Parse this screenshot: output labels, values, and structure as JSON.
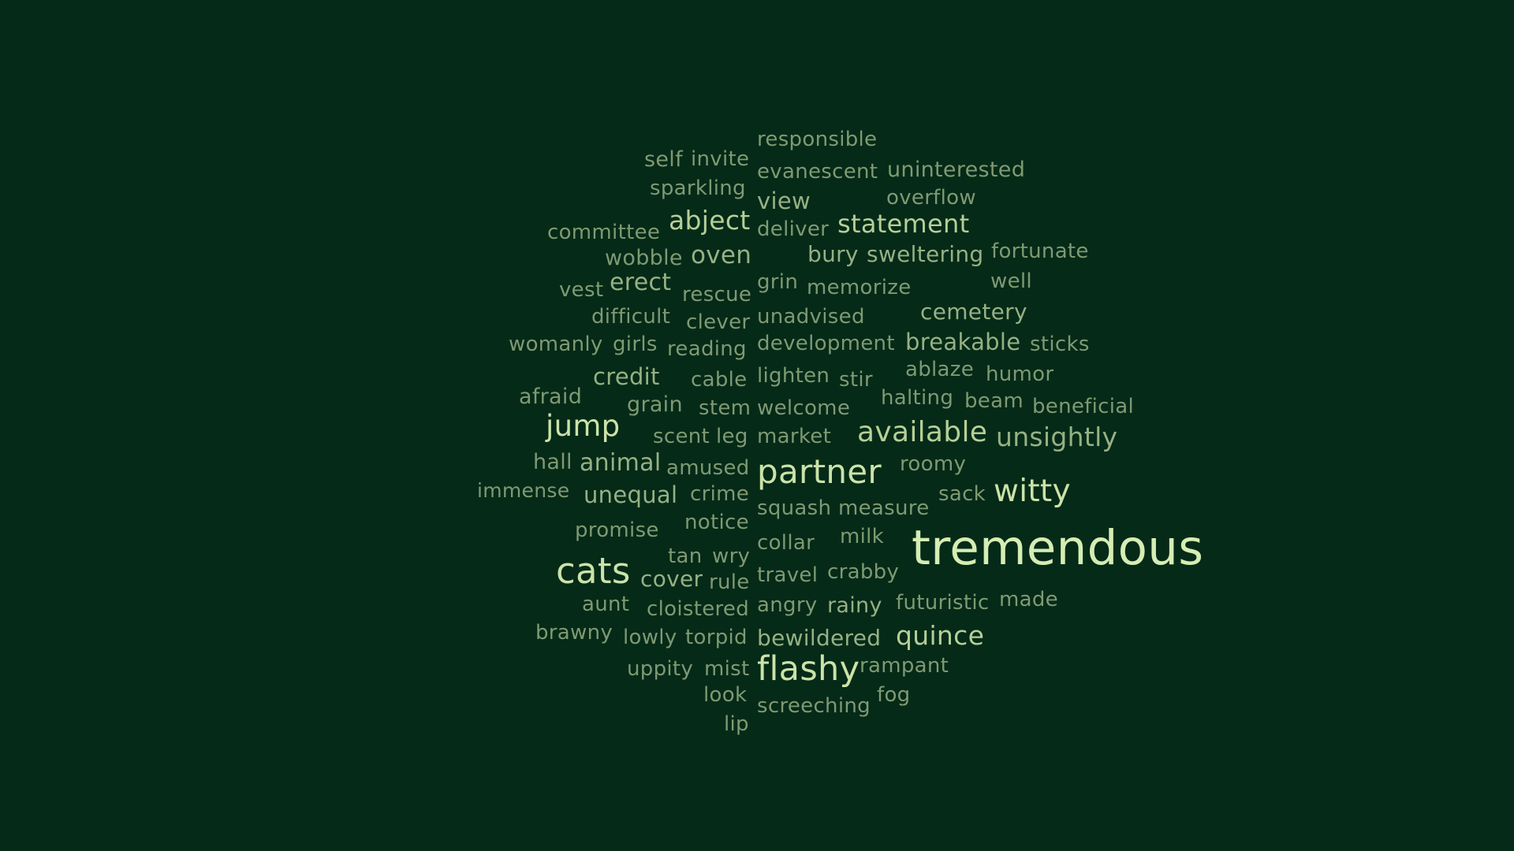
{
  "theme": {
    "background": "#052a18",
    "word_colors": [
      "#7f9a72",
      "#96b183",
      "#b6cf97",
      "#cbe3a8",
      "#d6edb3"
    ]
  },
  "words": [
    {
      "text": "responsible",
      "weight": 1
    },
    {
      "text": "self",
      "weight": 1
    },
    {
      "text": "invite",
      "weight": 1
    },
    {
      "text": "evanescent",
      "weight": 1
    },
    {
      "text": "uninterested",
      "weight": 1
    },
    {
      "text": "sparkling",
      "weight": 1
    },
    {
      "text": "view",
      "weight": 2
    },
    {
      "text": "overflow",
      "weight": 1
    },
    {
      "text": "committee",
      "weight": 1
    },
    {
      "text": "abject",
      "weight": 3
    },
    {
      "text": "deliver",
      "weight": 1
    },
    {
      "text": "statement",
      "weight": 3
    },
    {
      "text": "wobble",
      "weight": 1
    },
    {
      "text": "oven",
      "weight": 2
    },
    {
      "text": "bury",
      "weight": 2
    },
    {
      "text": "sweltering",
      "weight": 2
    },
    {
      "text": "fortunate",
      "weight": 1
    },
    {
      "text": "vest",
      "weight": 1
    },
    {
      "text": "erect",
      "weight": 2
    },
    {
      "text": "rescue",
      "weight": 1
    },
    {
      "text": "grin",
      "weight": 1
    },
    {
      "text": "memorize",
      "weight": 1
    },
    {
      "text": "well",
      "weight": 1
    },
    {
      "text": "difficult",
      "weight": 1
    },
    {
      "text": "clever",
      "weight": 1
    },
    {
      "text": "unadvised",
      "weight": 1
    },
    {
      "text": "cemetery",
      "weight": 2
    },
    {
      "text": "womanly",
      "weight": 1
    },
    {
      "text": "girls",
      "weight": 1
    },
    {
      "text": "reading",
      "weight": 1
    },
    {
      "text": "development",
      "weight": 1
    },
    {
      "text": "breakable",
      "weight": 2
    },
    {
      "text": "sticks",
      "weight": 1
    },
    {
      "text": "credit",
      "weight": 2
    },
    {
      "text": "cable",
      "weight": 1
    },
    {
      "text": "lighten",
      "weight": 1
    },
    {
      "text": "stir",
      "weight": 1
    },
    {
      "text": "ablaze",
      "weight": 1
    },
    {
      "text": "humor",
      "weight": 1
    },
    {
      "text": "afraid",
      "weight": 1
    },
    {
      "text": "grain",
      "weight": 1
    },
    {
      "text": "stem",
      "weight": 1
    },
    {
      "text": "welcome",
      "weight": 1
    },
    {
      "text": "halting",
      "weight": 1
    },
    {
      "text": "beam",
      "weight": 1
    },
    {
      "text": "beneficial",
      "weight": 1
    },
    {
      "text": "jump",
      "weight": 4
    },
    {
      "text": "scent",
      "weight": 1
    },
    {
      "text": "leg",
      "weight": 1
    },
    {
      "text": "market",
      "weight": 1
    },
    {
      "text": "available",
      "weight": 3
    },
    {
      "text": "unsightly",
      "weight": 2
    },
    {
      "text": "hall",
      "weight": 1
    },
    {
      "text": "animal",
      "weight": 2
    },
    {
      "text": "amused",
      "weight": 1
    },
    {
      "text": "partner",
      "weight": 4
    },
    {
      "text": "roomy",
      "weight": 1
    },
    {
      "text": "witty",
      "weight": 4
    },
    {
      "text": "immense",
      "weight": 1
    },
    {
      "text": "unequal",
      "weight": 2
    },
    {
      "text": "crime",
      "weight": 1
    },
    {
      "text": "sack",
      "weight": 1
    },
    {
      "text": "squash",
      "weight": 1
    },
    {
      "text": "measure",
      "weight": 1
    },
    {
      "text": "promise",
      "weight": 1
    },
    {
      "text": "notice",
      "weight": 1
    },
    {
      "text": "collar",
      "weight": 1
    },
    {
      "text": "milk",
      "weight": 1
    },
    {
      "text": "tremendous",
      "weight": 5
    },
    {
      "text": "tan",
      "weight": 1
    },
    {
      "text": "wry",
      "weight": 1
    },
    {
      "text": "cats",
      "weight": 4
    },
    {
      "text": "cover",
      "weight": 2
    },
    {
      "text": "rule",
      "weight": 1
    },
    {
      "text": "travel",
      "weight": 1
    },
    {
      "text": "crabby",
      "weight": 1
    },
    {
      "text": "aunt",
      "weight": 1
    },
    {
      "text": "cloistered",
      "weight": 1
    },
    {
      "text": "angry",
      "weight": 1
    },
    {
      "text": "rainy",
      "weight": 2
    },
    {
      "text": "futuristic",
      "weight": 1
    },
    {
      "text": "made",
      "weight": 1
    },
    {
      "text": "brawny",
      "weight": 1
    },
    {
      "text": "lowly",
      "weight": 1
    },
    {
      "text": "torpid",
      "weight": 1
    },
    {
      "text": "bewildered",
      "weight": 2
    },
    {
      "text": "quince",
      "weight": 3
    },
    {
      "text": "uppity",
      "weight": 1
    },
    {
      "text": "mist",
      "weight": 1
    },
    {
      "text": "flashy",
      "weight": 4
    },
    {
      "text": "rampant",
      "weight": 1
    },
    {
      "text": "look",
      "weight": 1
    },
    {
      "text": "fog",
      "weight": 1
    },
    {
      "text": "screeching",
      "weight": 1
    },
    {
      "text": "lip",
      "weight": 1
    }
  ]
}
